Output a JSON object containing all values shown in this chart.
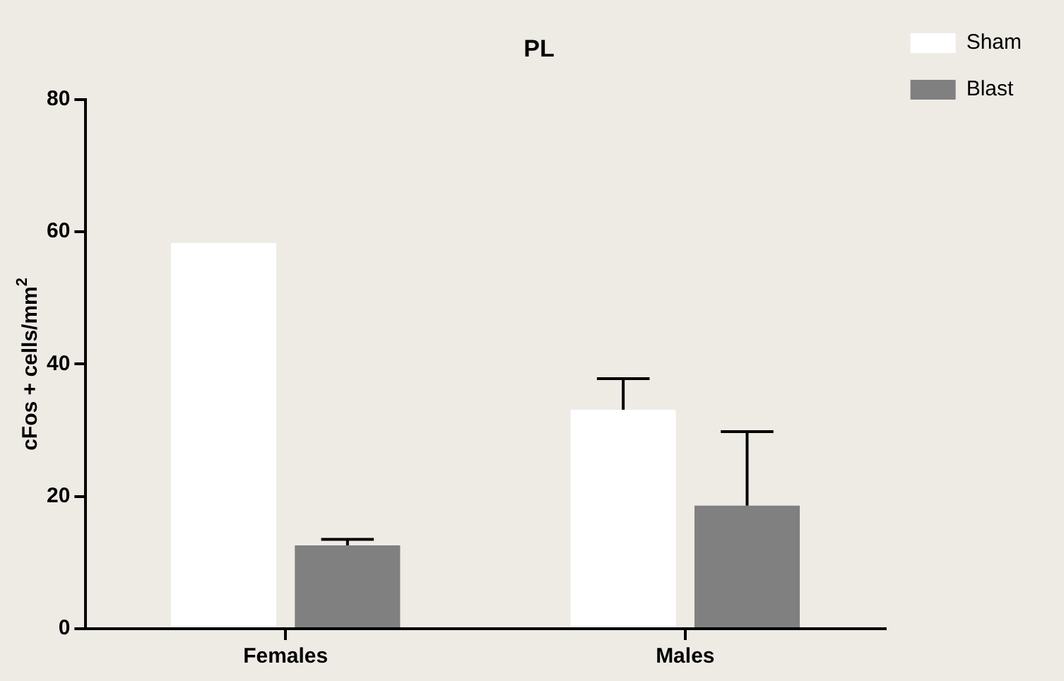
{
  "chart_data": {
    "type": "bar",
    "title": "PL",
    "ylabel": "cFos + cells/mm$^{2}$",
    "categories": [
      "Females",
      "Males"
    ],
    "series": [
      {
        "name": "Sham",
        "color": "#ffffff",
        "values": [
          58.3,
          33.1
        ],
        "errors": [
          null,
          [
            33.1,
            37.8
          ]
        ]
      },
      {
        "name": "Blast",
        "color": "#808080",
        "values": [
          12.6,
          18.6
        ],
        "errors": [
          [
            12.6,
            13.5
          ],
          [
            18.6,
            29.8
          ]
        ]
      }
    ],
    "ylim": [
      0,
      80
    ],
    "yticks": [
      0,
      20,
      40,
      60,
      80
    ],
    "grid": false,
    "legend": "top right"
  }
}
